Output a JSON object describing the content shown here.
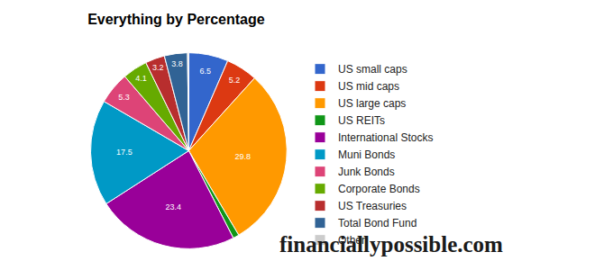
{
  "chart_data": {
    "type": "pie",
    "title": "Everything by Percentage",
    "categories": [
      "US small caps",
      "US mid caps",
      "US large caps",
      "US REITs",
      "International Stocks",
      "Muni Bonds",
      "Junk Bonds",
      "Corporate Bonds",
      "US Treasuries",
      "Total Bond Fund",
      "Other"
    ],
    "values": [
      6.5,
      5.2,
      29.8,
      1.0,
      23.4,
      17.5,
      5.3,
      4.1,
      3.2,
      3.8,
      0.2
    ],
    "value_labels": [
      "6.5",
      "5.2",
      "29.8",
      null,
      "23.4",
      "17.5",
      "5.3",
      "4.1",
      "3.2",
      "3.8",
      null
    ],
    "colors": [
      "#3366cc",
      "#dc3912",
      "#ff9900",
      "#109618",
      "#990099",
      "#0099c6",
      "#dd4477",
      "#66aa00",
      "#b82e2e",
      "#316395",
      "#cccccc"
    ],
    "data_labels": true,
    "legend": "right",
    "annotations": [
      "financiallypossible.com"
    ]
  }
}
